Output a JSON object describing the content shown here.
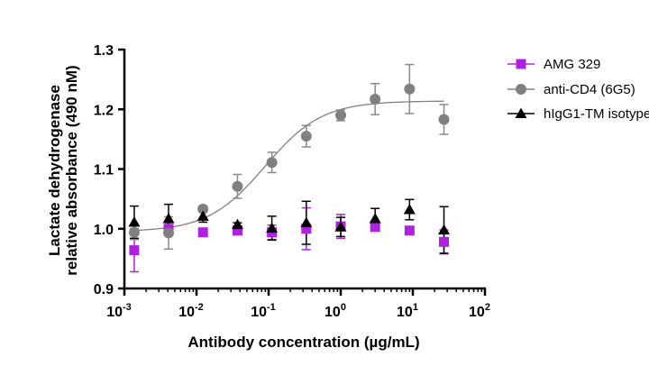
{
  "chart_data": {
    "type": "scatter",
    "xscale": "log",
    "xlabel": "Antibody concentration (µg/mL)",
    "ylabel_line1": "Lactate dehydrogenase",
    "ylabel_line2": "relative absorbance (490 nM)",
    "xlim": [
      0.001,
      100
    ],
    "ylim": [
      0.9,
      1.3
    ],
    "x_ticks": [
      {
        "base": "10",
        "exp": "-3"
      },
      {
        "base": "10",
        "exp": "-2"
      },
      {
        "base": "10",
        "exp": "-1"
      },
      {
        "base": "10",
        "exp": "0"
      },
      {
        "base": "10",
        "exp": "1"
      },
      {
        "base": "10",
        "exp": "2"
      }
    ],
    "y_ticks": [
      "0.9",
      "1.0",
      "1.1",
      "1.2",
      "1.3"
    ],
    "legend_position": "right",
    "series": [
      {
        "name": "AMG 329",
        "marker": "square",
        "color": "#b020e0",
        "errorbar_color": "#b020e0",
        "x": [
          0.00137,
          0.0041,
          0.0123,
          0.037,
          0.111,
          0.333,
          1.0,
          3.0,
          9.0,
          27.0
        ],
        "y": [
          0.964,
          1.0,
          0.994,
          0.997,
          0.994,
          1.0,
          1.004,
          1.003,
          0.997,
          0.978
        ],
        "err": [
          0.036,
          0.01,
          0.004,
          0.005,
          0.012,
          0.035,
          0.02,
          0.005,
          0.004,
          0.02
        ]
      },
      {
        "name": "anti-CD4 (6G5)",
        "marker": "circle",
        "color": "#808080",
        "errorbar_color": "#8a8a8a",
        "x": [
          0.00137,
          0.0041,
          0.0123,
          0.037,
          0.111,
          0.333,
          1.0,
          3.0,
          9.0,
          27.0
        ],
        "y": [
          0.994,
          0.993,
          1.033,
          1.071,
          1.111,
          1.155,
          1.19,
          1.217,
          1.234,
          1.183
        ],
        "err": [
          0.012,
          0.027,
          0.005,
          0.02,
          0.017,
          0.018,
          0.009,
          0.026,
          0.041,
          0.025
        ],
        "fit": {
          "bottom": 0.995,
          "top": 1.214,
          "logEC50": -1.05,
          "hill": 1.1
        }
      },
      {
        "name": "hIgG1-TM isotype",
        "marker": "triangle",
        "color": "#000000",
        "errorbar_color": "#000000",
        "x": [
          0.00137,
          0.0041,
          0.0123,
          0.037,
          0.111,
          0.333,
          1.0,
          3.0,
          9.0,
          27.0
        ],
        "y": [
          1.011,
          1.017,
          1.021,
          1.007,
          1.001,
          1.01,
          1.003,
          1.017,
          1.032,
          0.998
        ],
        "err": [
          0.027,
          0.024,
          0.01,
          0.003,
          0.02,
          0.036,
          0.016,
          0.017,
          0.017,
          0.039
        ]
      }
    ]
  }
}
